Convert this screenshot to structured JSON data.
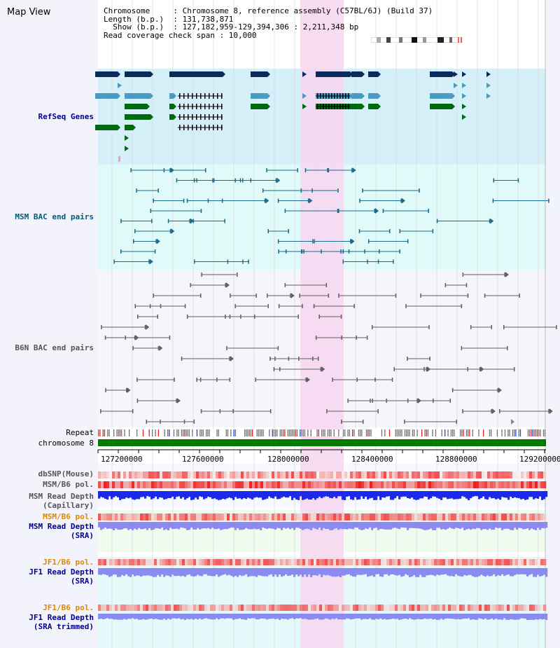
{
  "header": {
    "title": "Map View",
    "info_lines": [
      "Chromosome     : Chromosome 8, reference assembly (C57BL/6J) (Build 37)",
      "Length (b.p.)  : 131,738,871",
      "  Show (b.p.)  : 127,182,959-129,394,306 : 2,211,348 bp",
      "Read coverage check span : 10,000"
    ]
  },
  "tracks": {
    "refseq": "RefSeq Genes",
    "msm_bac": "MSM BAC end pairs",
    "b6n_bac": "B6N BAC end pairs",
    "repeat": "Repeat",
    "chromosome": "chromosome 8",
    "dbsnp": "dbSNP(Mouse)",
    "msm_b6_pol": "MSM/B6 pol.",
    "msm_depth_cap_1": "MSM Read Depth",
    "msm_depth_cap_2": "(Capillary)",
    "msm_b6_pol_2": "MSM/B6 pol.",
    "msm_depth_sra_1": "MSM Read Depth",
    "msm_depth_sra_2": "(SRA)",
    "jf1_pol": "JF1/B6 pol.",
    "jf1_depth_1": "JF1 Read Depth",
    "jf1_depth_2": "(SRA)",
    "jf1_pol_2": "JF1/B6 pol.",
    "jf1_trim_1": "JF1 Read Depth",
    "jf1_trim_2": "(SRA trimmed)"
  },
  "axis": {
    "ticks": [
      "127200000",
      "127600000",
      "128000000",
      "128400000",
      "128800000",
      "129200000"
    ]
  },
  "colors": {
    "refseq_bg": "#d6f0fa",
    "msm_bg": "#e0fafa",
    "b6n_bg": "#f5f5fa",
    "highlight": "#f7d6f0",
    "chromosome": "#007a00",
    "gene_dark": "#0a2c5c",
    "gene_light": "#4a9ac4",
    "gene_green": "#006a10",
    "msm_line": "#1a6a8a",
    "b6n_line": "#606060",
    "depth_blue": "#1a2ae8",
    "sra_blue": "#8a8af0",
    "pol_red": "#f03030",
    "label_blue": "#000090",
    "label_orange": "#e08800",
    "label_teal": "#005a7a"
  }
}
